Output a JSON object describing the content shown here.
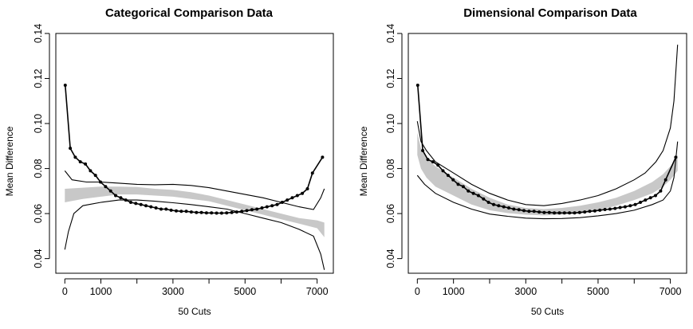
{
  "chart_data": [
    {
      "type": "line",
      "title": "Categorical Comparison Data",
      "xlabel": "50 Cuts",
      "ylabel": "Mean Difference",
      "xlim": [
        -250,
        7450
      ],
      "ylim": [
        0.0335,
        0.14
      ],
      "xticks": [
        0,
        1000,
        3000,
        5000,
        7000
      ],
      "xtick_labels": [
        "0",
        "1000",
        "3000",
        "5000",
        "7000"
      ],
      "xtick_marks": [
        0,
        1000,
        2000,
        3000,
        4000,
        5000,
        6000,
        7000
      ],
      "yticks": [
        0.04,
        0.06,
        0.08,
        0.1,
        0.12,
        0.14
      ],
      "ytick_labels": [
        "0.04",
        "0.06",
        "0.08",
        "0.10",
        "0.12",
        "0.14"
      ],
      "grid": false,
      "series": [
        {
          "style": "points-line",
          "color": "#000000",
          "x": [
            10,
            150,
            290,
            430,
            570,
            710,
            850,
            990,
            1130,
            1270,
            1410,
            1550,
            1690,
            1830,
            1970,
            2110,
            2250,
            2390,
            2530,
            2670,
            2810,
            2950,
            3090,
            3230,
            3370,
            3510,
            3650,
            3790,
            3930,
            4070,
            4210,
            4350,
            4490,
            4630,
            4770,
            4910,
            5050,
            5190,
            5330,
            5470,
            5610,
            5750,
            5890,
            6030,
            6170,
            6310,
            6450,
            6590,
            6730,
            6870,
            7150
          ],
          "y": [
            0.117,
            0.089,
            0.085,
            0.083,
            0.082,
            0.079,
            0.077,
            0.074,
            0.072,
            0.07,
            0.068,
            0.067,
            0.066,
            0.065,
            0.0645,
            0.064,
            0.0635,
            0.063,
            0.0625,
            0.062,
            0.062,
            0.0615,
            0.0612,
            0.061,
            0.061,
            0.0607,
            0.0605,
            0.0605,
            0.0603,
            0.0603,
            0.0602,
            0.0602,
            0.0603,
            0.0605,
            0.0607,
            0.061,
            0.0613,
            0.0617,
            0.062,
            0.0625,
            0.063,
            0.0635,
            0.064,
            0.065,
            0.066,
            0.067,
            0.068,
            0.069,
            0.071,
            0.078,
            0.085
          ]
        },
        {
          "style": "band",
          "color": "#c8c8c8",
          "x": [
            0,
            500,
            1000,
            1500,
            2000,
            2500,
            3000,
            3500,
            4000,
            4500,
            5000,
            5500,
            6000,
            6500,
            7000,
            7200
          ],
          "upper": [
            0.071,
            0.0715,
            0.072,
            0.072,
            0.0718,
            0.071,
            0.0705,
            0.0695,
            0.068,
            0.066,
            0.064,
            0.062,
            0.06,
            0.058,
            0.057,
            0.056
          ],
          "lower": [
            0.065,
            0.0665,
            0.0675,
            0.0685,
            0.0685,
            0.068,
            0.0675,
            0.0665,
            0.0655,
            0.0635,
            0.0615,
            0.0595,
            0.0575,
            0.0555,
            0.0535,
            0.0495
          ]
        },
        {
          "style": "line",
          "color": "#000000",
          "x": [
            0,
            200,
            600,
            1000,
            1500,
            2000,
            2500,
            3000,
            3500,
            4000,
            4500,
            5000,
            5500,
            6000,
            6500,
            6900,
            7100,
            7200
          ],
          "y": [
            0.079,
            0.075,
            0.074,
            0.074,
            0.0735,
            0.073,
            0.0728,
            0.073,
            0.0725,
            0.0715,
            0.07,
            0.0685,
            0.067,
            0.065,
            0.063,
            0.0618,
            0.067,
            0.071
          ]
        },
        {
          "style": "line",
          "color": "#000000",
          "x": [
            0,
            100,
            250,
            500,
            1000,
            1500,
            2000,
            2500,
            3000,
            3500,
            4000,
            4500,
            5000,
            5500,
            6000,
            6500,
            6900,
            7100,
            7200
          ],
          "y": [
            0.044,
            0.052,
            0.06,
            0.0635,
            0.065,
            0.066,
            0.066,
            0.0655,
            0.0648,
            0.064,
            0.063,
            0.062,
            0.06,
            0.058,
            0.056,
            0.053,
            0.05,
            0.042,
            0.035
          ]
        }
      ]
    },
    {
      "type": "line",
      "title": "Dimensional Comparison Data",
      "xlabel": "50 Cuts",
      "ylabel": "Mean Difference",
      "xlim": [
        -250,
        7450
      ],
      "ylim": [
        0.0335,
        0.14
      ],
      "xticks": [
        0,
        1000,
        3000,
        5000,
        7000
      ],
      "xtick_labels": [
        "0",
        "1000",
        "3000",
        "5000",
        "7000"
      ],
      "xtick_marks": [
        0,
        1000,
        2000,
        3000,
        4000,
        5000,
        6000,
        7000
      ],
      "yticks": [
        0.04,
        0.06,
        0.08,
        0.1,
        0.12,
        0.14
      ],
      "ytick_labels": [
        "0.04",
        "0.06",
        "0.08",
        "0.10",
        "0.12",
        "0.14"
      ],
      "grid": false,
      "series": [
        {
          "style": "points-line",
          "color": "#000000",
          "x": [
            10,
            150,
            290,
            430,
            570,
            710,
            850,
            990,
            1130,
            1270,
            1410,
            1550,
            1690,
            1830,
            1970,
            2110,
            2250,
            2390,
            2530,
            2670,
            2810,
            2950,
            3090,
            3230,
            3370,
            3510,
            3650,
            3790,
            3930,
            4070,
            4210,
            4350,
            4490,
            4630,
            4770,
            4910,
            5050,
            5190,
            5330,
            5470,
            5610,
            5750,
            5890,
            6030,
            6170,
            6310,
            6450,
            6590,
            6730,
            6870,
            7150
          ],
          "y": [
            0.117,
            0.088,
            0.084,
            0.083,
            0.0815,
            0.079,
            0.077,
            0.075,
            0.073,
            0.072,
            0.07,
            0.069,
            0.068,
            0.0665,
            0.065,
            0.064,
            0.0635,
            0.063,
            0.0625,
            0.062,
            0.0617,
            0.0613,
            0.061,
            0.061,
            0.0607,
            0.0605,
            0.0605,
            0.0603,
            0.0603,
            0.0603,
            0.0603,
            0.0603,
            0.0605,
            0.0607,
            0.061,
            0.0612,
            0.0615,
            0.0618,
            0.062,
            0.0623,
            0.0627,
            0.063,
            0.0635,
            0.064,
            0.065,
            0.066,
            0.067,
            0.068,
            0.07,
            0.075,
            0.085
          ]
        },
        {
          "style": "band",
          "color": "#c8c8c8",
          "x": [
            0,
            100,
            250,
            500,
            1000,
            1500,
            2000,
            2500,
            3000,
            3500,
            4000,
            4500,
            5000,
            5500,
            6000,
            6500,
            6800,
            7000,
            7100,
            7200
          ],
          "upper": [
            0.096,
            0.089,
            0.085,
            0.081,
            0.076,
            0.071,
            0.067,
            0.064,
            0.0625,
            0.062,
            0.0625,
            0.0635,
            0.065,
            0.067,
            0.07,
            0.074,
            0.0775,
            0.081,
            0.083,
            0.086
          ],
          "lower": [
            0.086,
            0.08,
            0.076,
            0.072,
            0.068,
            0.064,
            0.0615,
            0.0602,
            0.0595,
            0.0592,
            0.0595,
            0.06,
            0.0615,
            0.0635,
            0.066,
            0.069,
            0.072,
            0.075,
            0.077,
            0.079
          ]
        },
        {
          "style": "line",
          "color": "#000000",
          "x": [
            0,
            100,
            250,
            500,
            1000,
            1500,
            2000,
            2500,
            3000,
            3500,
            4000,
            4500,
            5000,
            5500,
            6000,
            6300,
            6600,
            6800,
            7000,
            7100,
            7200
          ],
          "y": [
            0.101,
            0.092,
            0.088,
            0.083,
            0.078,
            0.073,
            0.069,
            0.066,
            0.064,
            0.0635,
            0.0645,
            0.066,
            0.068,
            0.071,
            0.075,
            0.078,
            0.083,
            0.088,
            0.098,
            0.11,
            0.135
          ]
        },
        {
          "style": "line",
          "color": "#000000",
          "x": [
            0,
            200,
            500,
            1000,
            1500,
            2000,
            2500,
            3000,
            3500,
            4000,
            4500,
            5000,
            5500,
            6000,
            6500,
            6800,
            7000,
            7100,
            7200
          ],
          "y": [
            0.077,
            0.073,
            0.069,
            0.065,
            0.062,
            0.0598,
            0.0588,
            0.058,
            0.0577,
            0.0578,
            0.0582,
            0.059,
            0.06,
            0.0615,
            0.064,
            0.066,
            0.07,
            0.076,
            0.092
          ]
        }
      ]
    }
  ]
}
